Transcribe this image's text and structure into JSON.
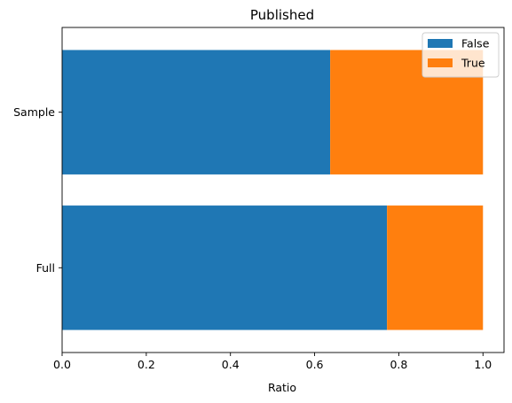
{
  "chart_data": {
    "type": "bar",
    "orientation": "horizontal",
    "stacked": true,
    "title": "Published",
    "xlabel": "Ratio",
    "ylabel": "",
    "categories": [
      "Full",
      "Sample"
    ],
    "series": [
      {
        "name": "False",
        "values": [
          0.772,
          0.637
        ],
        "color": "#1f77b4"
      },
      {
        "name": "True",
        "values": [
          0.228,
          0.363
        ],
        "color": "#ff7f0e"
      }
    ],
    "xlim": [
      0,
      1.05
    ],
    "xticks": [
      "0.0",
      "0.2",
      "0.4",
      "0.6",
      "0.8",
      "1.0"
    ],
    "grid": false,
    "legend": "top-right"
  }
}
